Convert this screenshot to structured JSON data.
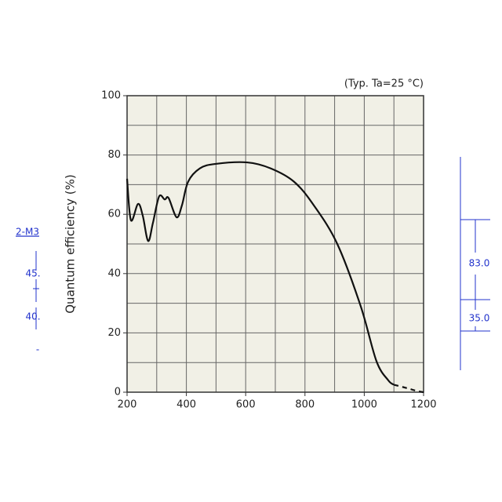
{
  "chart_data": {
    "type": "line",
    "title": "(Typ. Ta=25 °C)",
    "y_label": "Quantum efficiency (%)",
    "series": [
      {
        "color": "#111111",
        "style": "solid",
        "x": [
          200,
          213,
          237,
          253,
          271,
          287,
          308,
          327,
          340,
          367,
          385,
          406,
          446,
          499,
          605,
          684,
          763,
          830,
          909,
          988,
          1041,
          1081,
          1100
        ],
        "values": [
          72,
          58,
          63.5,
          59.5,
          51,
          57,
          66,
          65,
          65.5,
          59,
          63,
          71,
          75.5,
          77,
          77.5,
          75.5,
          71,
          63,
          50,
          29,
          10.5,
          4,
          2.5
        ]
      },
      {
        "color": "#111111",
        "style": "dashed",
        "x": [
          1100,
          1147,
          1174,
          1200
        ],
        "values": [
          2.5,
          1.3,
          0.5,
          0
        ]
      }
    ],
    "xlim": [
      200,
      1200
    ],
    "xticks": [
      200,
      400,
      600,
      800,
      1000,
      1200
    ],
    "ylim": [
      0,
      100
    ],
    "yticks": [
      0,
      20,
      40,
      60,
      80,
      100
    ],
    "xgrid": [
      300,
      500,
      700,
      900,
      1100
    ],
    "ygrid": [
      10,
      30,
      50,
      70,
      90
    ],
    "grid": true,
    "background": "#f1f0e6",
    "annotations": [
      "2-M3",
      "45.",
      "40.",
      "-",
      "83.0",
      "35.0"
    ]
  }
}
